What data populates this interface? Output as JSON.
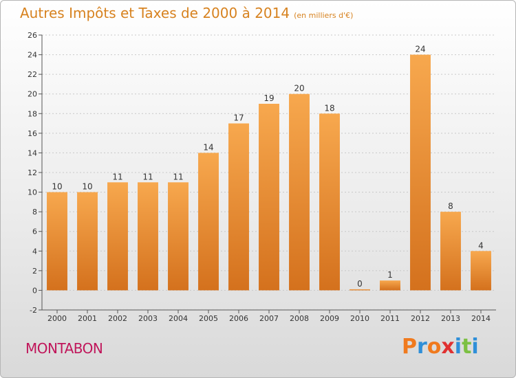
{
  "header": {
    "title": "Autres Impôts et Taxes de 2000 à 2014",
    "unit": "(en milliers d'€)"
  },
  "footer": {
    "place": "MONTABON",
    "logo": [
      "P",
      "r",
      "o",
      "x",
      "i",
      "t",
      "i"
    ]
  },
  "colors": {
    "title": "#d7821f",
    "place": "#c0155a",
    "bar_light": "#f7a84e",
    "bar_dark": "#d4711d",
    "logo": [
      "#f07a1e",
      "#2f8fd8",
      "#f07a1e",
      "#e03131",
      "#2f8fd8",
      "#7cc043",
      "#2f8fd8"
    ]
  },
  "chart_data": {
    "type": "bar",
    "title": "Autres Impôts et Taxes de 2000 à 2014",
    "subtitle": "(en milliers d'€)",
    "categories": [
      "2000",
      "2001",
      "2002",
      "2003",
      "2004",
      "2005",
      "2006",
      "2007",
      "2008",
      "2009",
      "2010",
      "2011",
      "2012",
      "2013",
      "2014"
    ],
    "values": [
      10,
      10,
      11,
      11,
      11,
      14,
      17,
      19,
      20,
      18,
      0,
      1,
      24,
      8,
      4
    ],
    "ylim": [
      -2,
      26
    ],
    "yticks": [
      -2,
      0,
      2,
      4,
      6,
      8,
      10,
      12,
      14,
      16,
      18,
      20,
      22,
      24,
      26
    ],
    "grid": true
  }
}
